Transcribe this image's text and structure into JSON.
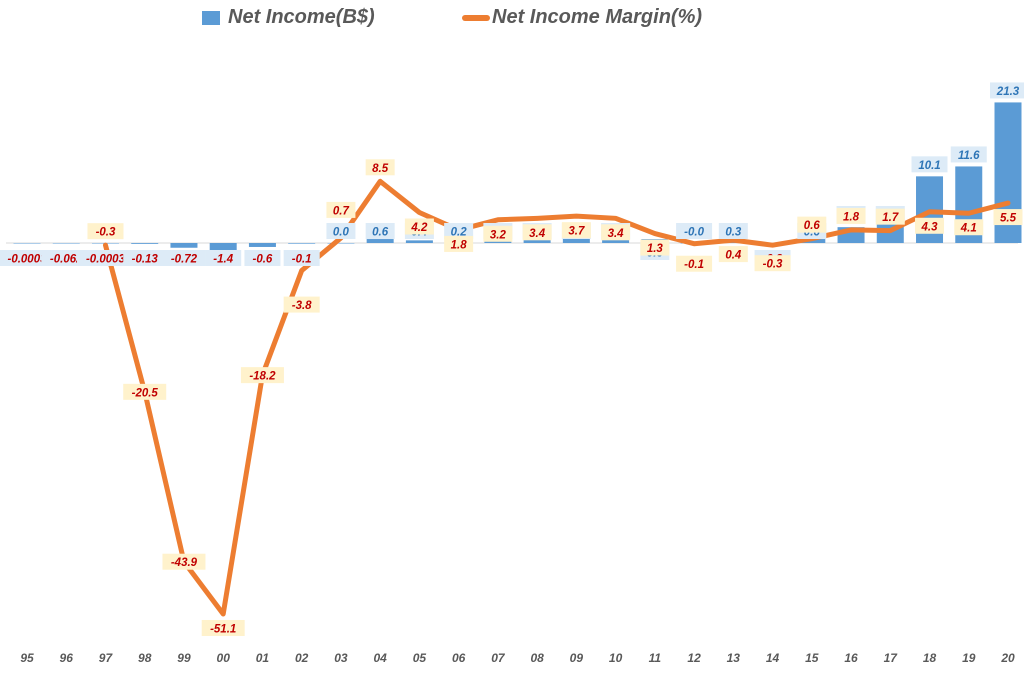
{
  "legend": {
    "income_label": "Net Income(B$)",
    "margin_label": "Net Income Margin(%)"
  },
  "colors": {
    "bar": "#5b9bd5",
    "line": "#ed7d31",
    "bar_label_text": "#2e75b6",
    "bar_label_bg": "#ddebf7",
    "line_label_text": "#c00000",
    "line_label_bg": "#fff2cc",
    "axis_text": "#595959"
  },
  "chart_data": {
    "type": "bar+line",
    "categories": [
      "95",
      "96",
      "97",
      "98",
      "99",
      "00",
      "01",
      "02",
      "03",
      "04",
      "05",
      "06",
      "07",
      "08",
      "09",
      "10",
      "11",
      "12",
      "13",
      "14",
      "15",
      "16",
      "17",
      "18",
      "19",
      "20"
    ],
    "series": [
      {
        "name": "Net Income(B$)",
        "type": "bar",
        "values": [
          -0.0003,
          -0.062,
          -0.0003,
          -0.13,
          -0.72,
          -1.4,
          -0.6,
          -0.1,
          0.0,
          0.6,
          0.4,
          0.2,
          0.5,
          0.6,
          0.9,
          1.2,
          0.6,
          -0.0,
          0.3,
          -0.2,
          0.6,
          2.4,
          3.0,
          10.1,
          11.6,
          21.3
        ],
        "labels": [
          "-0.0003",
          "-0.062",
          "-0.0003",
          "-0.13",
          "-0.72",
          "-1.4",
          "-0.6",
          "-0.1",
          "0.0",
          "0.6",
          "0.4",
          "0.2",
          "0.5",
          "0.6",
          "0.9",
          "1.2",
          "0.6",
          "-0.0",
          "0.3",
          "-0.2",
          "0.6",
          "2.4",
          "3.0",
          "10.1",
          "11.6",
          "21.3"
        ]
      },
      {
        "name": "Net Income Margin(%)",
        "type": "line",
        "values": [
          null,
          null,
          -0.3,
          -20.5,
          -43.9,
          -51.1,
          -18.2,
          -3.8,
          0.7,
          8.5,
          4.2,
          1.8,
          3.2,
          3.4,
          3.7,
          3.4,
          1.3,
          -0.1,
          0.4,
          -0.3,
          0.6,
          1.8,
          1.7,
          4.3,
          4.1,
          5.5
        ],
        "labels": [
          null,
          null,
          "-0.3",
          "-20.5",
          "-43.9",
          "-51.1",
          "-18.2",
          "-3.8",
          "0.7",
          "8.5",
          "4.2",
          "1.8",
          "3.2",
          "3.4",
          "3.7",
          "3.4",
          "1.3",
          "-0.1",
          "0.4",
          "-0.3",
          "0.6",
          "1.8",
          "1.7",
          "4.3",
          "4.1",
          "5.5"
        ]
      }
    ],
    "legend_position": "top",
    "grid": false
  }
}
